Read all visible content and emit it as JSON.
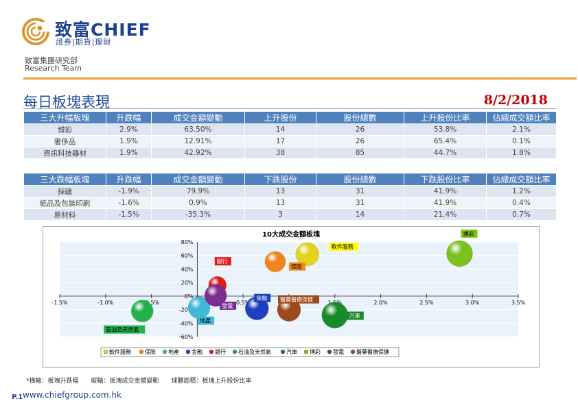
{
  "header": {
    "logo_text": "致富CHIEF",
    "logo_sub": "證券|期貨|理財",
    "dept": "致富集團研究部",
    "team": "Research Team"
  },
  "title": "每日板塊表現",
  "date": "8/2/2018",
  "table_up": {
    "headers": [
      "三大升幅板塊",
      "升跌幅",
      "成交金額變動",
      "上升股份",
      "股份總數",
      "上升股份比率",
      "佔總成交額比率"
    ],
    "rows": [
      [
        "博彩",
        "2.9%",
        "63.50%",
        "14",
        "26",
        "53.8%",
        "2.1%"
      ],
      [
        "奢侈品",
        "1.9%",
        "12.91%",
        "17",
        "26",
        "65.4%",
        "0.1%"
      ],
      [
        "資訊科技器材",
        "1.9%",
        "42.92%",
        "38",
        "85",
        "44.7%",
        "1.8%"
      ]
    ]
  },
  "table_down": {
    "headers": [
      "三大跌幅板塊",
      "升跌幅",
      "成交金額變動",
      "下跌股份",
      "股份總數",
      "下跌股份比率",
      "佔總成交額比率"
    ],
    "rows": [
      [
        "採礦",
        "-1.9%",
        "79.9%",
        "13",
        "31",
        "41.9%",
        "1.2%"
      ],
      [
        "紙品及包裝印刷",
        "-1.6%",
        "0.9%",
        "13",
        "31",
        "41.9%",
        "0.4%"
      ],
      [
        "原材料",
        "-1.5%",
        "-35.3%",
        "3",
        "14",
        "21.4%",
        "0.7%"
      ]
    ]
  },
  "chart_data": {
    "type": "scatter",
    "title": "10大成交金額板塊",
    "xlim": [
      -1.5,
      3.5
    ],
    "ylim": [
      -60,
      80
    ],
    "x_ticks": [
      "-1.5%",
      "-1.0%",
      "-0.5%",
      "0.0%",
      "0.5%",
      "1.0%",
      "1.5%",
      "2.0%",
      "2.5%",
      "3.0%",
      "3.5%"
    ],
    "y_ticks": [
      "80%",
      "60%",
      "40%",
      "20%",
      "0%",
      "-20%",
      "-40%",
      "-60%"
    ],
    "legend_position": "bottom",
    "series": [
      {
        "name": "軟件服務",
        "x": 1.2,
        "y": 62,
        "color": "#e6d21e",
        "label_color": "#ffff00",
        "label_text_color": "#000000"
      },
      {
        "name": "保險",
        "x": 0.85,
        "y": 51,
        "color": "#f0861e",
        "label_color": "#f0861e",
        "label_text_color": "#000000"
      },
      {
        "name": "地產",
        "x": 0.02,
        "y": -17,
        "color": "#3fb9d9",
        "label_color": "#3fb9d9",
        "label_text_color": "#000000"
      },
      {
        "name": "金融",
        "x": 0.65,
        "y": -18,
        "color": "#1f3fbf",
        "label_color": "#1f3fbf",
        "label_text_color": "#ffffff"
      },
      {
        "name": "銀行",
        "x": 0.22,
        "y": 16,
        "color": "#e21b1b",
        "label_color": "#e21b1b",
        "label_text_color": "#ffffff"
      },
      {
        "name": "石油及天然氣",
        "x": -0.6,
        "y": -22,
        "color": "#22b24a",
        "label_color": "#22b24a",
        "label_text_color": "#000000"
      },
      {
        "name": "汽車",
        "x": 1.5,
        "y": -28,
        "color": "#168c28",
        "label_color": "#168c28",
        "label_text_color": "#ffffff"
      },
      {
        "name": "博彩",
        "x": 2.86,
        "y": 63,
        "color": "#7cc21c",
        "label_color": "#7cc21c",
        "label_text_color": "#000000"
      },
      {
        "name": "發電",
        "x": 0.2,
        "y": 1,
        "color": "#7b2d92",
        "label_color": "#7b2d92",
        "label_text_color": "#ffffff"
      },
      {
        "name": "醫藥醫療保健",
        "x": 1.0,
        "y": -20,
        "color": "#9c4a1c",
        "label_color": "#9c4a1c",
        "label_text_color": "#ffffff"
      }
    ]
  },
  "footer": {
    "note": "*橫軸：板塊升跌幅　　縱軸：板塊成交金額變動　　球體面積：板塊上升股份比率",
    "website": "www.chiefgroup.com.hk",
    "page": "P.1"
  }
}
